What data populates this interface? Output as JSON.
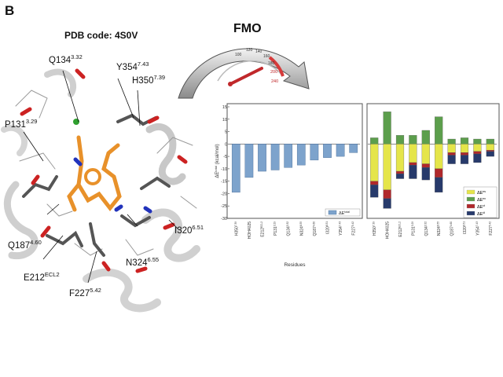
{
  "panel_label": "B",
  "pdb_label": "PDB code: 4S0V",
  "method_label": "FMO",
  "gauge_ticks": [
    "100",
    "120",
    "140",
    "160",
    "180",
    "200",
    "240"
  ],
  "residue_labels": [
    {
      "id": "q134",
      "name": "Q134",
      "sup": "3.32"
    },
    {
      "id": "y354",
      "name": "Y354",
      "sup": "7.43"
    },
    {
      "id": "h350",
      "name": "H350",
      "sup": "7.39"
    },
    {
      "id": "p131",
      "name": "P131",
      "sup": "3.29"
    },
    {
      "id": "q187",
      "name": "Q187",
      "sup": "4.60"
    },
    {
      "id": "i320",
      "name": "I320",
      "sup": "6.51"
    },
    {
      "id": "n324",
      "name": "N324",
      "sup": "6.55"
    },
    {
      "id": "e212",
      "name": "E212",
      "sup": "ECL2"
    },
    {
      "id": "f227",
      "name": "F227",
      "sup": "5.42"
    }
  ],
  "colors": {
    "total": "#7da3cc",
    "es": "#e5e54a",
    "ex": "#5c9e4c",
    "ct": "#b0282b",
    "di": "#273a6b"
  },
  "chart_data": [
    {
      "type": "bar",
      "categories": [
        "H350",
        "HOH4025",
        "E212",
        "P131",
        "Q134",
        "N324",
        "Q187",
        "I320",
        "Y354",
        "F227"
      ],
      "category_sups": [
        "7.39",
        "",
        "ECL2",
        "3.29",
        "3.32",
        "6.55",
        "4.60",
        "6.51",
        "7.43",
        "5.42"
      ],
      "ylabel": "ΔE",
      "ylabel_sup": "total",
      "ylabel_unit": "(kcal/mol)",
      "xlabel": "Residues",
      "ylim": [
        -30,
        15
      ],
      "yticks": [
        -30,
        -25,
        -20,
        -15,
        -10,
        -5,
        0,
        5,
        10,
        15
      ],
      "series": [
        {
          "name": "ΔE",
          "name_sup": "total",
          "values": [
            -19.5,
            -13.5,
            -11,
            -10.5,
            -9.5,
            -8.5,
            -6.5,
            -5.5,
            -5,
            -3.5
          ]
        }
      ],
      "legend": "bottom-right"
    },
    {
      "type": "bar",
      "stacked": true,
      "categories": [
        "H350",
        "HOH4025",
        "E212",
        "P131",
        "Q134",
        "N324",
        "Q187",
        "I320",
        "Y354",
        "F227"
      ],
      "category_sups": [
        "7.39",
        "",
        "ECL2",
        "3.29",
        "3.32",
        "6.55",
        "4.60",
        "6.51",
        "7.43",
        "5.42"
      ],
      "ylim": [
        -30,
        15
      ],
      "series": [
        {
          "name": "ΔE",
          "name_sup": "es",
          "values": [
            -15,
            -18.5,
            -11,
            -7.5,
            -8,
            -10,
            -3.5,
            -3.5,
            -3,
            -2.5
          ]
        },
        {
          "name": "ΔE",
          "name_sup": "ex",
          "values": [
            2.5,
            13,
            3.5,
            3.5,
            5.5,
            11,
            2,
            2.5,
            2,
            2
          ]
        },
        {
          "name": "ΔE",
          "name_sup": "ct",
          "values": [
            -1.5,
            -3.5,
            -1,
            -1,
            -1.5,
            -3.5,
            -1,
            -1,
            -1,
            -0.5
          ]
        },
        {
          "name": "ΔE",
          "name_sup": "di",
          "values": [
            -5,
            -4,
            -2,
            -5.5,
            -5,
            -6,
            -3.5,
            -3.5,
            -3.5,
            -2
          ]
        }
      ],
      "legend": "bottom-right"
    }
  ]
}
